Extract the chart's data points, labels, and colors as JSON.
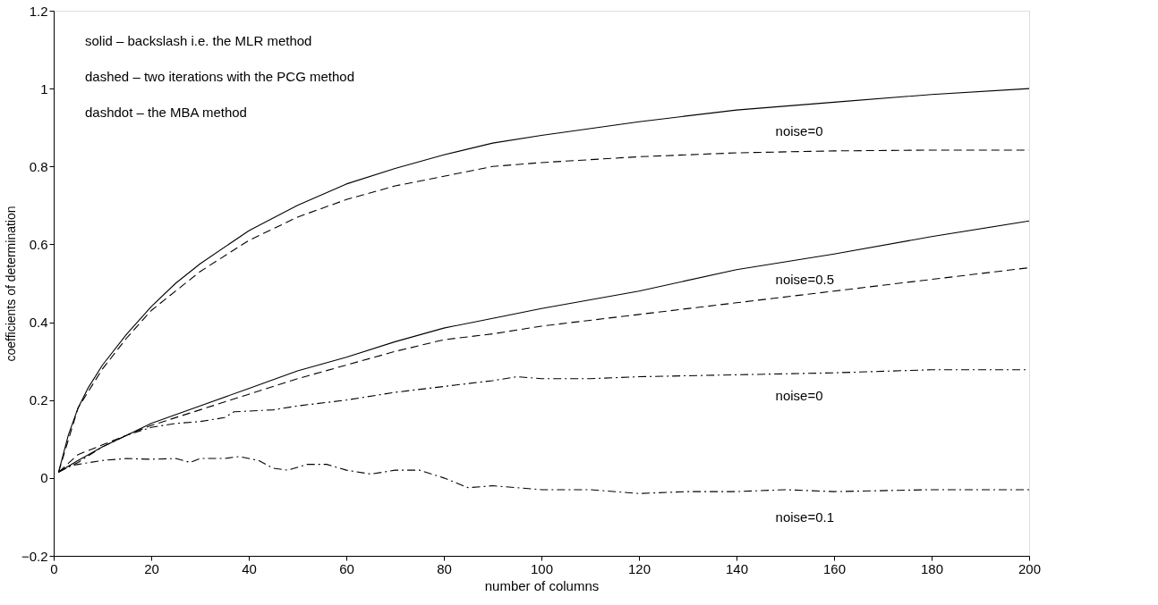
{
  "chart_data": {
    "type": "line",
    "xlabel": "number of columns",
    "ylabel": "coefficients of determination",
    "xlim": [
      0,
      200
    ],
    "xticks": [
      0,
      20,
      40,
      60,
      80,
      100,
      120,
      140,
      160,
      180,
      200
    ],
    "ylim": [
      -0.2,
      1.2
    ],
    "yticks": [
      -0.2,
      0,
      0.2,
      0.4,
      0.6,
      0.8,
      1,
      1.2
    ],
    "grid": false,
    "marker": "none",
    "series": [
      {
        "color": "#000000",
        "line_style": "solid",
        "x": [
          1,
          3,
          5,
          7,
          10,
          15,
          20,
          25,
          30,
          40,
          50,
          60,
          70,
          80,
          90,
          100,
          120,
          140,
          160,
          180,
          200
        ],
        "values": [
          0.015,
          0.11,
          0.18,
          0.23,
          0.29,
          0.37,
          0.44,
          0.5,
          0.55,
          0.635,
          0.7,
          0.755,
          0.795,
          0.83,
          0.86,
          0.88,
          0.915,
          0.945,
          0.965,
          0.985,
          1.0
        ]
      },
      {
        "color": "#000000",
        "line_style": "dashed",
        "x": [
          1,
          5,
          10,
          15,
          20,
          30,
          40,
          50,
          60,
          70,
          80,
          90,
          100,
          120,
          140,
          160,
          180,
          200
        ],
        "values": [
          0.015,
          0.18,
          0.28,
          0.36,
          0.43,
          0.53,
          0.61,
          0.67,
          0.715,
          0.75,
          0.775,
          0.8,
          0.81,
          0.825,
          0.835,
          0.84,
          0.842,
          0.842
        ]
      },
      {
        "color": "#000000",
        "line_style": "solid",
        "x": [
          1,
          5,
          10,
          15,
          20,
          30,
          40,
          50,
          60,
          70,
          80,
          90,
          100,
          120,
          140,
          160,
          180,
          200
        ],
        "values": [
          0.015,
          0.045,
          0.08,
          0.11,
          0.14,
          0.185,
          0.23,
          0.275,
          0.31,
          0.35,
          0.385,
          0.41,
          0.435,
          0.48,
          0.535,
          0.575,
          0.62,
          0.66
        ]
      },
      {
        "color": "#000000",
        "line_style": "dashed",
        "x": [
          1,
          5,
          10,
          15,
          20,
          30,
          40,
          50,
          60,
          70,
          80,
          90,
          100,
          120,
          140,
          160,
          180,
          200
        ],
        "values": [
          0.015,
          0.06,
          0.085,
          0.11,
          0.135,
          0.175,
          0.215,
          0.255,
          0.29,
          0.325,
          0.355,
          0.37,
          0.39,
          0.42,
          0.45,
          0.48,
          0.51,
          0.54
        ]
      },
      {
        "color": "#000000",
        "line_style": "dashdot",
        "x": [
          1,
          5,
          10,
          15,
          20,
          25,
          30,
          35,
          37,
          45,
          50,
          60,
          70,
          80,
          90,
          95,
          100,
          110,
          120,
          140,
          160,
          180,
          200
        ],
        "values": [
          0.015,
          0.04,
          0.08,
          0.11,
          0.13,
          0.14,
          0.145,
          0.155,
          0.17,
          0.175,
          0.185,
          0.2,
          0.22,
          0.235,
          0.25,
          0.26,
          0.255,
          0.255,
          0.26,
          0.265,
          0.27,
          0.278,
          0.278
        ]
      },
      {
        "color": "#000000",
        "line_style": "dashdot",
        "x": [
          1,
          3,
          5,
          10,
          15,
          20,
          25,
          28,
          30,
          35,
          38,
          42,
          45,
          48,
          52,
          56,
          60,
          65,
          70,
          75,
          80,
          85,
          90,
          100,
          110,
          120,
          130,
          140,
          150,
          160,
          180,
          200
        ],
        "values": [
          0.015,
          0.03,
          0.035,
          0.045,
          0.05,
          0.048,
          0.05,
          0.04,
          0.05,
          0.05,
          0.055,
          0.045,
          0.025,
          0.02,
          0.035,
          0.035,
          0.02,
          0.01,
          0.02,
          0.02,
          0.0,
          -0.025,
          -0.02,
          -0.03,
          -0.03,
          -0.04,
          -0.035,
          -0.035,
          -0.03,
          -0.035,
          -0.03,
          -0.03
        ]
      }
    ],
    "annotations": [
      "solid – backslash i.e. the MLR method",
      "dashed – two iterations with the PCG method",
      "dashdot – the MBA method",
      "noise=0",
      "noise=0.5",
      "noise=0",
      "noise=0.1"
    ]
  }
}
